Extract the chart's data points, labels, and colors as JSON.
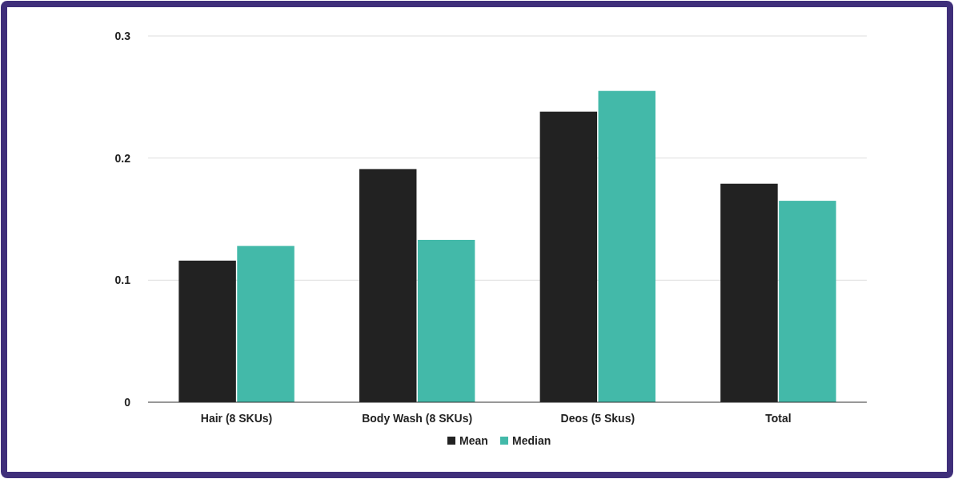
{
  "chart_data": {
    "type": "bar",
    "categories": [
      "Hair (8 SKUs)",
      "Body Wash (8 SKUs)",
      "Deos (5 Skus)",
      "Total"
    ],
    "series": [
      {
        "name": "Mean",
        "color": "#222222",
        "values": [
          0.116,
          0.191,
          0.238,
          0.179
        ]
      },
      {
        "name": "Median",
        "color": "#43b9a9",
        "values": [
          0.128,
          0.133,
          0.255,
          0.165
        ]
      }
    ],
    "ylim": [
      0,
      0.3
    ],
    "yticks": [
      0,
      0.1,
      0.2,
      0.3
    ],
    "grid": "y",
    "legend": "bottom"
  }
}
